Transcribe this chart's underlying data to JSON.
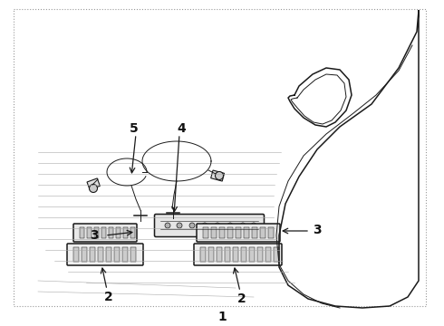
{
  "bg_color": "#ffffff",
  "line_color": "#1a1a1a",
  "border_color": "#888888",
  "label_color": "#111111",
  "fig_width": 4.9,
  "fig_height": 3.6,
  "dpi": 100,
  "label_1": "1",
  "label_2": "2",
  "label_3": "3",
  "label_4": "4",
  "label_5": "5"
}
